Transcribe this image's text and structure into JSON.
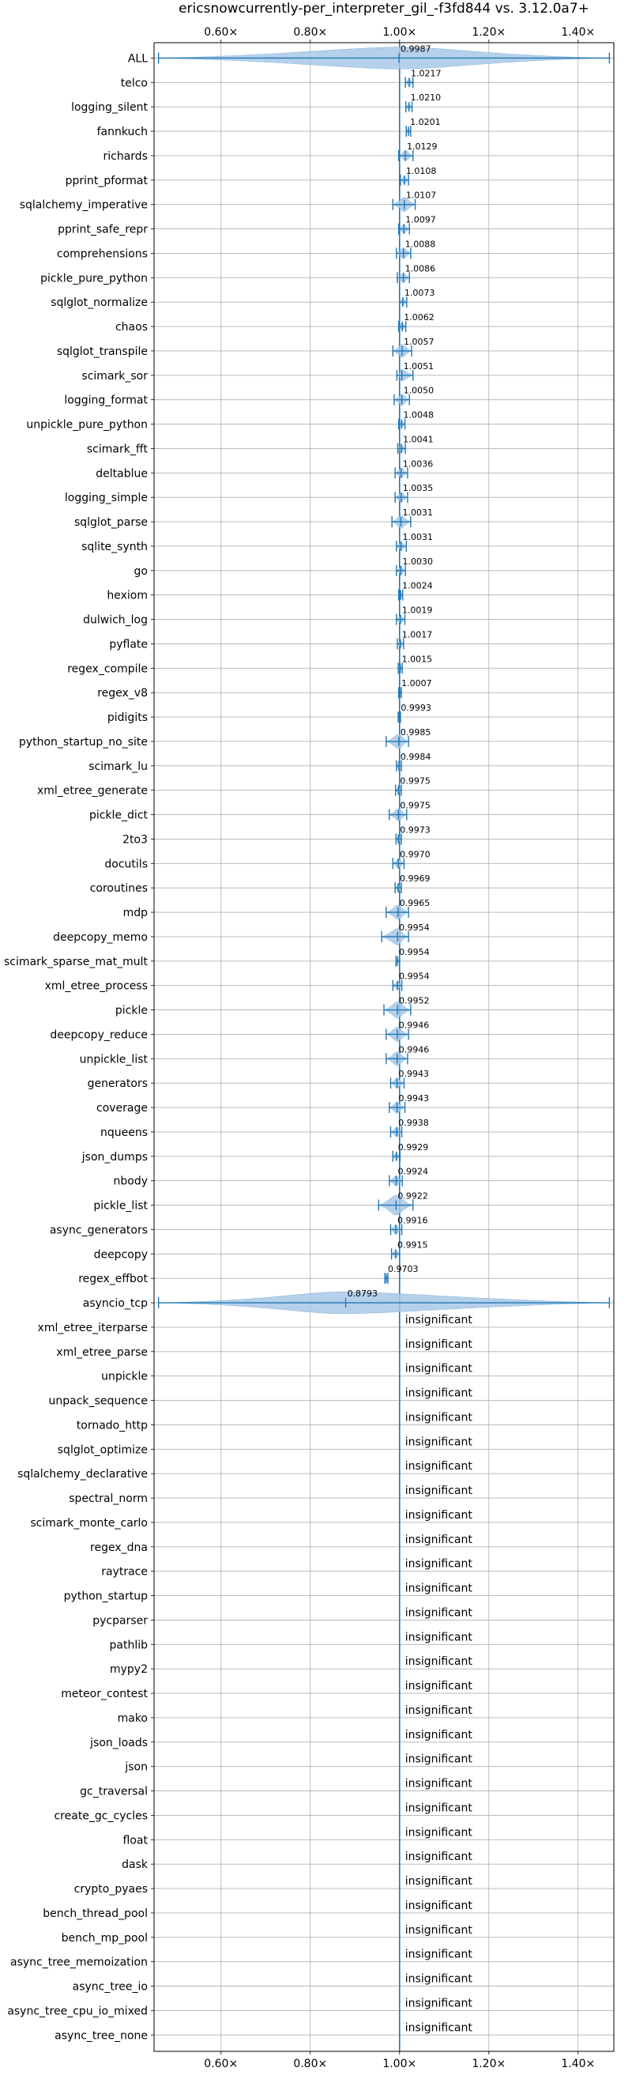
{
  "chart_data": {
    "type": "violin",
    "title": "ericsnowcurrently-per_interpreter_gil_-f3fd844 vs. 3.12.0a7+",
    "xlabel": "",
    "ylabel": "",
    "xlim": [
      0.45,
      1.48
    ],
    "xticks": [
      0.6,
      0.8,
      1.0,
      1.2,
      1.4
    ],
    "xtick_labels": [
      "0.60×",
      "0.80×",
      "1.00×",
      "1.20×",
      "1.40×"
    ],
    "reference_line": 1.0,
    "grid": true,
    "colors": {
      "series": "#1f77b4",
      "fill": "#a8c8e8",
      "grid": "#b0b0b0"
    },
    "insignificant_text": "insignificant",
    "benchmarks": [
      {
        "name": "ALL",
        "value": 0.9987,
        "label": "0.9987",
        "min": 0.46,
        "max": 1.47
      },
      {
        "name": "telco",
        "value": 1.0217,
        "label": "1.0217",
        "min": 1.013,
        "max": 1.03
      },
      {
        "name": "logging_silent",
        "value": 1.021,
        "label": "1.0210",
        "min": 1.014,
        "max": 1.028
      },
      {
        "name": "fannkuch",
        "value": 1.0201,
        "label": "1.0201",
        "min": 1.015,
        "max": 1.025
      },
      {
        "name": "richards",
        "value": 1.0129,
        "label": "1.0129",
        "min": 0.998,
        "max": 1.03
      },
      {
        "name": "pprint_pformat",
        "value": 1.0108,
        "label": "1.0108",
        "min": 1.002,
        "max": 1.02
      },
      {
        "name": "sqlalchemy_imperative",
        "value": 1.0107,
        "label": "1.0107",
        "min": 0.985,
        "max": 1.035
      },
      {
        "name": "pprint_safe_repr",
        "value": 1.0097,
        "label": "1.0097",
        "min": 0.998,
        "max": 1.022
      },
      {
        "name": "comprehensions",
        "value": 1.0088,
        "label": "1.0088",
        "min": 0.993,
        "max": 1.025
      },
      {
        "name": "pickle_pure_python",
        "value": 1.0086,
        "label": "1.0086",
        "min": 0.995,
        "max": 1.022
      },
      {
        "name": "sqlglot_normalize",
        "value": 1.0073,
        "label": "1.0073",
        "min": 1.0,
        "max": 1.016
      },
      {
        "name": "chaos",
        "value": 1.0062,
        "label": "1.0062",
        "min": 0.998,
        "max": 1.014
      },
      {
        "name": "sqlglot_transpile",
        "value": 1.0057,
        "label": "1.0057",
        "min": 0.985,
        "max": 1.027
      },
      {
        "name": "scimark_sor",
        "value": 1.0051,
        "label": "1.0051",
        "min": 0.994,
        "max": 1.03
      },
      {
        "name": "logging_format",
        "value": 1.005,
        "label": "1.0050",
        "min": 0.988,
        "max": 1.022
      },
      {
        "name": "unpickle_pure_python",
        "value": 1.0048,
        "label": "1.0048",
        "min": 0.998,
        "max": 1.012
      },
      {
        "name": "scimark_fft",
        "value": 1.0041,
        "label": "1.0041",
        "min": 0.996,
        "max": 1.013
      },
      {
        "name": "deltablue",
        "value": 1.0036,
        "label": "1.0036",
        "min": 0.99,
        "max": 1.018
      },
      {
        "name": "logging_simple",
        "value": 1.0035,
        "label": "1.0035",
        "min": 0.99,
        "max": 1.018
      },
      {
        "name": "sqlglot_parse",
        "value": 1.0031,
        "label": "1.0031",
        "min": 0.983,
        "max": 1.025
      },
      {
        "name": "sqlite_synth",
        "value": 1.0031,
        "label": "1.0031",
        "min": 0.993,
        "max": 1.015
      },
      {
        "name": "go",
        "value": 1.003,
        "label": "1.0030",
        "min": 0.993,
        "max": 1.013
      },
      {
        "name": "hexiom",
        "value": 1.0024,
        "label": "1.0024",
        "min": 0.998,
        "max": 1.007
      },
      {
        "name": "dulwich_log",
        "value": 1.0019,
        "label": "1.0019",
        "min": 0.993,
        "max": 1.012
      },
      {
        "name": "pyflate",
        "value": 1.0017,
        "label": "1.0017",
        "min": 0.995,
        "max": 1.009
      },
      {
        "name": "regex_compile",
        "value": 1.0015,
        "label": "1.0015",
        "min": 0.997,
        "max": 1.006
      },
      {
        "name": "regex_v8",
        "value": 1.0007,
        "label": "1.0007",
        "min": 0.998,
        "max": 1.004
      },
      {
        "name": "pidigits",
        "value": 0.9993,
        "label": "0.9993",
        "min": 0.997,
        "max": 1.002
      },
      {
        "name": "python_startup_no_site",
        "value": 0.9985,
        "label": "0.9985",
        "min": 0.97,
        "max": 1.02
      },
      {
        "name": "scimark_lu",
        "value": 0.9984,
        "label": "0.9984",
        "min": 0.993,
        "max": 1.004
      },
      {
        "name": "xml_etree_generate",
        "value": 0.9975,
        "label": "0.9975",
        "min": 0.991,
        "max": 1.004
      },
      {
        "name": "pickle_dict",
        "value": 0.9975,
        "label": "0.9975",
        "min": 0.977,
        "max": 1.016
      },
      {
        "name": "2to3",
        "value": 0.9973,
        "label": "0.9973",
        "min": 0.992,
        "max": 1.004
      },
      {
        "name": "docutils",
        "value": 0.997,
        "label": "0.9970",
        "min": 0.985,
        "max": 1.01
      },
      {
        "name": "coroutines",
        "value": 0.9969,
        "label": "0.9969",
        "min": 0.99,
        "max": 1.004
      },
      {
        "name": "mdp",
        "value": 0.9965,
        "label": "0.9965",
        "min": 0.97,
        "max": 1.02
      },
      {
        "name": "deepcopy_memo",
        "value": 0.9954,
        "label": "0.9954",
        "min": 0.96,
        "max": 1.02
      },
      {
        "name": "scimark_sparse_mat_mult",
        "value": 0.9954,
        "label": "0.9954",
        "min": 0.992,
        "max": 1.0
      },
      {
        "name": "xml_etree_process",
        "value": 0.9954,
        "label": "0.9954",
        "min": 0.985,
        "max": 1.005
      },
      {
        "name": "pickle",
        "value": 0.9952,
        "label": "0.9952",
        "min": 0.965,
        "max": 1.025
      },
      {
        "name": "deepcopy_reduce",
        "value": 0.9946,
        "label": "0.9946",
        "min": 0.97,
        "max": 1.02
      },
      {
        "name": "unpickle_list",
        "value": 0.9946,
        "label": "0.9946",
        "min": 0.97,
        "max": 1.018
      },
      {
        "name": "generators",
        "value": 0.9943,
        "label": "0.9943",
        "min": 0.98,
        "max": 1.01
      },
      {
        "name": "coverage",
        "value": 0.9943,
        "label": "0.9943",
        "min": 0.977,
        "max": 1.012
      },
      {
        "name": "nqueens",
        "value": 0.9938,
        "label": "0.9938",
        "min": 0.98,
        "max": 1.005
      },
      {
        "name": "json_dumps",
        "value": 0.9929,
        "label": "0.9929",
        "min": 0.985,
        "max": 1.001
      },
      {
        "name": "nbody",
        "value": 0.9924,
        "label": "0.9924",
        "min": 0.977,
        "max": 1.006
      },
      {
        "name": "pickle_list",
        "value": 0.9922,
        "label": "0.9922",
        "min": 0.953,
        "max": 1.03
      },
      {
        "name": "async_generators",
        "value": 0.9916,
        "label": "0.9916",
        "min": 0.98,
        "max": 1.005
      },
      {
        "name": "deepcopy",
        "value": 0.9915,
        "label": "0.9915",
        "min": 0.982,
        "max": 1.0
      },
      {
        "name": "regex_effbot",
        "value": 0.9703,
        "label": "0.9703",
        "min": 0.967,
        "max": 0.974
      },
      {
        "name": "asyncio_tcp",
        "value": 0.8793,
        "label": "0.8793",
        "min": 0.46,
        "max": 1.47
      },
      {
        "name": "xml_etree_iterparse",
        "insignificant": true
      },
      {
        "name": "xml_etree_parse",
        "insignificant": true
      },
      {
        "name": "unpickle",
        "insignificant": true
      },
      {
        "name": "unpack_sequence",
        "insignificant": true
      },
      {
        "name": "tornado_http",
        "insignificant": true
      },
      {
        "name": "sqlglot_optimize",
        "insignificant": true
      },
      {
        "name": "sqlalchemy_declarative",
        "insignificant": true
      },
      {
        "name": "spectral_norm",
        "insignificant": true
      },
      {
        "name": "scimark_monte_carlo",
        "insignificant": true
      },
      {
        "name": "regex_dna",
        "insignificant": true
      },
      {
        "name": "raytrace",
        "insignificant": true
      },
      {
        "name": "python_startup",
        "insignificant": true
      },
      {
        "name": "pycparser",
        "insignificant": true
      },
      {
        "name": "pathlib",
        "insignificant": true
      },
      {
        "name": "mypy2",
        "insignificant": true
      },
      {
        "name": "meteor_contest",
        "insignificant": true
      },
      {
        "name": "mako",
        "insignificant": true
      },
      {
        "name": "json_loads",
        "insignificant": true
      },
      {
        "name": "json",
        "insignificant": true
      },
      {
        "name": "gc_traversal",
        "insignificant": true
      },
      {
        "name": "create_gc_cycles",
        "insignificant": true
      },
      {
        "name": "float",
        "insignificant": true
      },
      {
        "name": "dask",
        "insignificant": true
      },
      {
        "name": "crypto_pyaes",
        "insignificant": true
      },
      {
        "name": "bench_thread_pool",
        "insignificant": true
      },
      {
        "name": "bench_mp_pool",
        "insignificant": true
      },
      {
        "name": "async_tree_memoization",
        "insignificant": true
      },
      {
        "name": "async_tree_io",
        "insignificant": true
      },
      {
        "name": "async_tree_cpu_io_mixed",
        "insignificant": true
      },
      {
        "name": "async_tree_none",
        "insignificant": true
      }
    ]
  }
}
